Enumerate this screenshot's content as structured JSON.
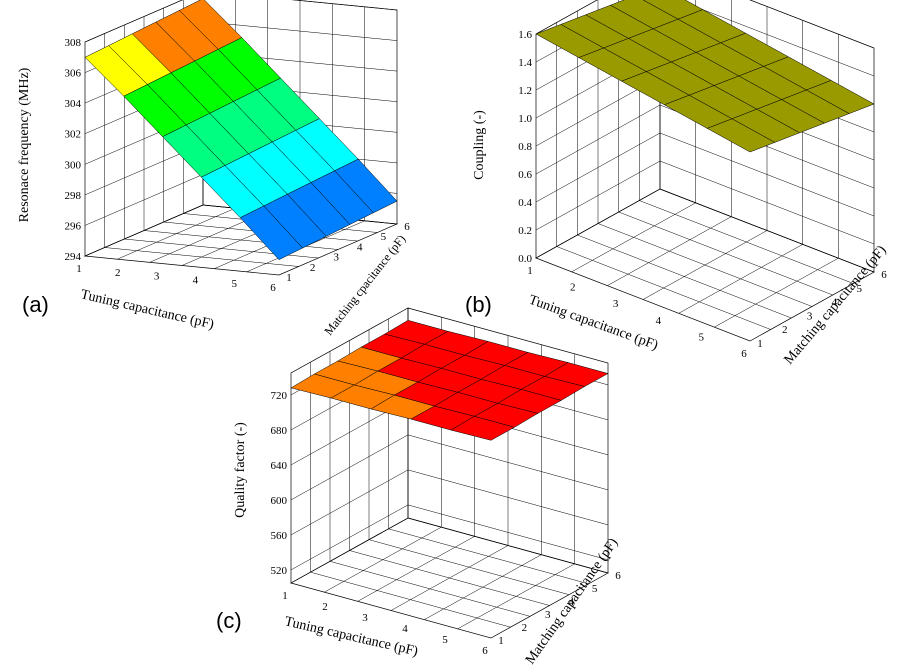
{
  "figure": {
    "panel_labels": [
      "(a)",
      "(b)",
      "(c)"
    ]
  },
  "colors": {
    "back_wall": "#800080",
    "side_wall": "#c0c0c0",
    "floor": "#808080"
  },
  "chart_data": [
    {
      "type": "surface3d",
      "panel": "(a)",
      "xlabel": "Tuning capacitance (pF)",
      "ylabel": "Matching cpacitance (pF)",
      "zlabel": "Resonace frequency (MHz)",
      "x_ticks": [
        1,
        2,
        3,
        4,
        5,
        6
      ],
      "y_ticks": [
        1,
        2,
        3,
        4,
        5,
        6
      ],
      "z_ticks": [
        294,
        296,
        298,
        300,
        302,
        304,
        306,
        308
      ],
      "zlim": [
        294,
        308
      ],
      "x": [
        1,
        2,
        3,
        4,
        5,
        6
      ],
      "y": [
        1,
        2,
        3,
        4,
        5,
        6
      ],
      "z_rows_by_tuning": [
        [
          307.0,
          307.1,
          307.2,
          307.3,
          307.4,
          307.5
        ],
        [
          304.7,
          304.8,
          304.9,
          305.0,
          305.1,
          305.2
        ],
        [
          302.3,
          302.4,
          302.5,
          302.6,
          302.7,
          302.8
        ],
        [
          299.9,
          300.0,
          300.1,
          300.2,
          300.3,
          300.4
        ],
        [
          297.5,
          297.6,
          297.7,
          297.8,
          297.9,
          298.0
        ],
        [
          295.0,
          295.1,
          295.2,
          295.3,
          295.4,
          295.5
        ]
      ],
      "color_bands": [
        {
          "from": 294,
          "to": 296,
          "color": "#0000ff"
        },
        {
          "from": 296,
          "to": 298,
          "color": "#0080ff"
        },
        {
          "from": 298,
          "to": 300,
          "color": "#00ffff"
        },
        {
          "from": 300,
          "to": 302,
          "color": "#00ff80"
        },
        {
          "from": 302,
          "to": 304,
          "color": "#00ff00"
        },
        {
          "from": 304,
          "to": 306,
          "color": "#ffff00"
        },
        {
          "from": 306,
          "to": 307,
          "color": "#ff8000"
        },
        {
          "from": 307,
          "to": 308,
          "color": "#ff0000"
        }
      ]
    },
    {
      "type": "surface3d",
      "panel": "(b)",
      "xlabel": "Tuning capacitance (pF)",
      "ylabel": "Matching capacitance (pF)",
      "zlabel": "Coupling (-)",
      "x_ticks": [
        1,
        2,
        3,
        4,
        5,
        6
      ],
      "y_ticks": [
        1,
        2,
        3,
        4,
        5,
        6
      ],
      "z_ticks": [
        "0.0",
        "0.2",
        "0.4",
        "0.6",
        "0.8",
        "1.0",
        "1.2",
        "1.4",
        "1.6"
      ],
      "zlim": [
        0,
        1.6
      ],
      "x": [
        1,
        2,
        3,
        4,
        5,
        6
      ],
      "y": [
        1,
        2,
        3,
        4,
        5,
        6
      ],
      "z_rows_by_tuning": [
        [
          1.6,
          1.57,
          1.54,
          1.51,
          1.48,
          1.45
        ],
        [
          1.55,
          1.52,
          1.49,
          1.46,
          1.43,
          1.4
        ],
        [
          1.5,
          1.47,
          1.44,
          1.41,
          1.38,
          1.35
        ],
        [
          1.45,
          1.42,
          1.39,
          1.36,
          1.33,
          1.3
        ],
        [
          1.4,
          1.37,
          1.34,
          1.31,
          1.28,
          1.25
        ],
        [
          1.35,
          1.32,
          1.29,
          1.26,
          1.23,
          1.2
        ]
      ],
      "color_bands": [
        {
          "from": 0,
          "to": 1.6,
          "color": "#999900"
        }
      ]
    },
    {
      "type": "surface3d",
      "panel": "(c)",
      "xlabel": "Tuning capacitance (pF)",
      "ylabel": "Matching capacitance (pF)",
      "zlabel": "Quality factor (-)",
      "x_ticks": [
        1,
        2,
        3,
        4,
        5,
        6
      ],
      "y_ticks": [
        1,
        2,
        3,
        4,
        5,
        6
      ],
      "z_ticks": [
        520,
        560,
        600,
        640,
        680,
        720
      ],
      "zlim": [
        505,
        745
      ],
      "x": [
        1,
        2,
        3,
        4,
        5,
        6
      ],
      "y": [
        1,
        2,
        3,
        4,
        5,
        6
      ],
      "z_rows_by_tuning": [
        [
          728,
          729,
          729,
          730,
          730,
          731
        ],
        [
          729,
          729,
          730,
          730,
          731,
          731
        ],
        [
          729,
          730,
          730,
          731,
          731,
          732
        ],
        [
          730,
          730,
          731,
          731,
          732,
          732
        ],
        [
          730,
          731,
          731,
          732,
          732,
          733
        ],
        [
          731,
          731,
          732,
          732,
          733,
          733
        ]
      ],
      "color_bands": [
        {
          "from": 505,
          "to": 730,
          "color": "#ff8000"
        },
        {
          "from": 730,
          "to": 745,
          "color": "#ff0000"
        }
      ]
    }
  ]
}
